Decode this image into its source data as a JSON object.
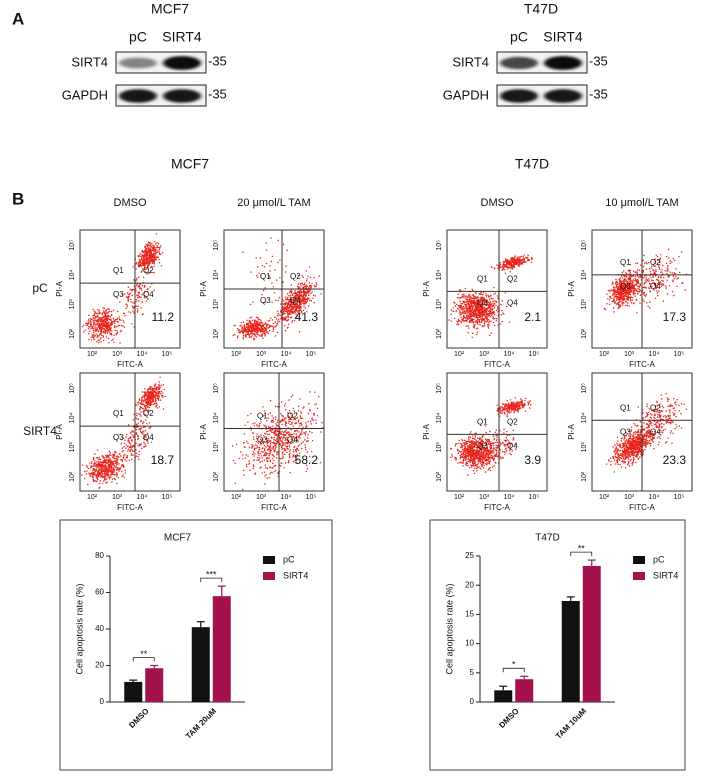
{
  "panel_a": {
    "label": "A",
    "blots": [
      {
        "title": "MCF7",
        "lanes": [
          "pC",
          "SIRT4"
        ],
        "rows": [
          "SIRT4",
          "GAPDH"
        ],
        "marker": "-35"
      },
      {
        "title": "T47D",
        "lanes": [
          "pC",
          "SIRT4"
        ],
        "rows": [
          "SIRT4",
          "GAPDH"
        ],
        "marker": "-35"
      }
    ]
  },
  "panel_b": {
    "label": "B",
    "cell_lines": [
      "MCF7",
      "T47D"
    ],
    "conditions": [
      "DMSO",
      "20 μmol/L  TAM",
      "DMSO",
      "10 μmol/L  TAM"
    ],
    "rows": [
      "pC",
      "SIRT4"
    ],
    "x_axis": "FITC-A",
    "y_axis": "PI-A",
    "axis_ticks": [
      "10²",
      "10³",
      "10⁴",
      "10⁵"
    ],
    "quadrants": [
      "Q1",
      "Q2",
      "Q3",
      "Q4"
    ],
    "apoptosis_values": [
      [
        11.2,
        41.3,
        2.1,
        17.3
      ],
      [
        18.7,
        58.2,
        3.9,
        23.3
      ]
    ]
  },
  "chart_data": [
    {
      "type": "bar",
      "title": "MCF7",
      "y_label": "Cell apoptosis rate (%)",
      "categories": [
        "DMSO",
        "TAM 20uM"
      ],
      "series": [
        {
          "name": "pC",
          "color": "#111111",
          "values": [
            11,
            41
          ],
          "errors": [
            1,
            3
          ]
        },
        {
          "name": "SIRT4",
          "color": "#a3124f",
          "values": [
            18.5,
            58
          ],
          "errors": [
            1.5,
            5.5
          ]
        }
      ],
      "significance": [
        "**",
        "***"
      ],
      "ylim": [
        0,
        80
      ],
      "yticks": [
        0,
        20,
        40,
        60,
        80
      ],
      "legend": "top-right"
    },
    {
      "type": "bar",
      "title": "T47D",
      "y_label": "Cell apoptosis rate (%)",
      "categories": [
        "DMSO",
        "TAM 10uM"
      ],
      "series": [
        {
          "name": "pC",
          "color": "#111111",
          "values": [
            2,
            17.3
          ],
          "errors": [
            0.7,
            0.7
          ]
        },
        {
          "name": "SIRT4",
          "color": "#a3124f",
          "values": [
            3.9,
            23.3
          ],
          "errors": [
            0.5,
            1
          ]
        }
      ],
      "significance": [
        "*",
        "**"
      ],
      "ylim": [
        0,
        25
      ],
      "yticks": [
        0,
        5,
        10,
        15,
        20,
        25
      ],
      "legend": "top-right"
    }
  ]
}
